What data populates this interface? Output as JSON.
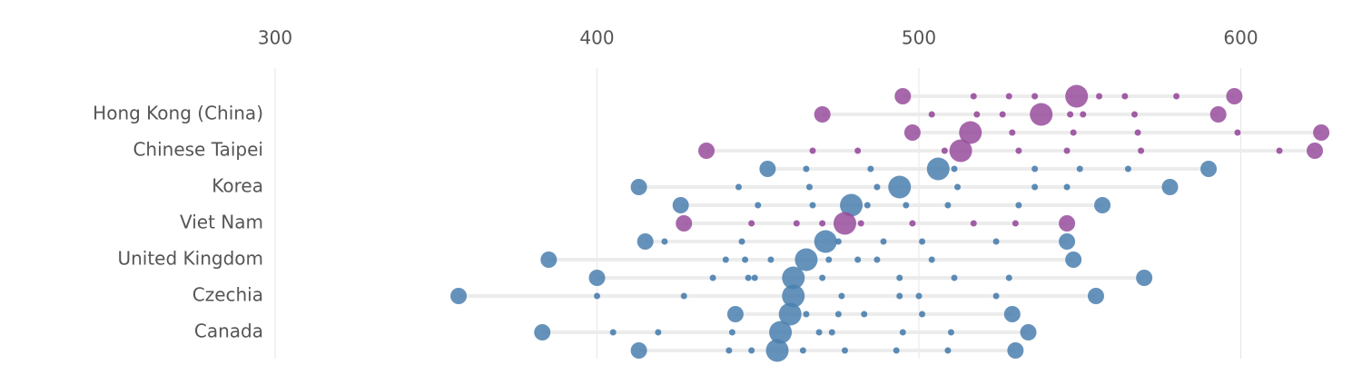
{
  "chart_data": {
    "type": "dotplot",
    "categories": [
      null,
      "Hong Kong (China)",
      null,
      "Chinese Taipei",
      null,
      "Korea",
      null,
      "Viet Nam",
      null,
      "United Kingdom",
      null,
      "Czechia",
      null,
      "Canada",
      null
    ],
    "rows": [
      {
        "color": "#984c9c",
        "low": 495,
        "high": 598,
        "mean": 549,
        "values": [
          517,
          528,
          536,
          556,
          564,
          580
        ]
      },
      {
        "color": "#984c9c",
        "low": 470,
        "high": 593,
        "mean": 538,
        "values": [
          504,
          518,
          526,
          547,
          551,
          567
        ]
      },
      {
        "color": "#984c9c",
        "low": 498,
        "high": 625,
        "mean": 516,
        "values": [
          529,
          548,
          568,
          599
        ]
      },
      {
        "color": "#984c9c",
        "low": 434,
        "high": 623,
        "mean": 513,
        "values": [
          467,
          481,
          508,
          531,
          546,
          569,
          612
        ]
      },
      {
        "color": "#4a7fae",
        "low": 453,
        "high": 590,
        "mean": 506,
        "values": [
          465,
          485,
          511,
          536,
          550,
          565
        ]
      },
      {
        "color": "#4a7fae",
        "low": 413,
        "high": 578,
        "mean": 494,
        "values": [
          444,
          466,
          487,
          512,
          536,
          546
        ]
      },
      {
        "color": "#4a7fae",
        "low": 426,
        "high": 557,
        "mean": 479,
        "values": [
          450,
          467,
          484,
          496,
          509,
          531
        ]
      },
      {
        "color": "#984c9c",
        "low": 427,
        "high": 546,
        "mean": 477,
        "values": [
          448,
          462,
          470,
          482,
          498,
          517,
          530
        ]
      },
      {
        "color": "#4a7fae",
        "low": 415,
        "high": 546,
        "mean": 471,
        "values": [
          421,
          445,
          475,
          489,
          501,
          524
        ]
      },
      {
        "color": "#4a7fae",
        "low": 385,
        "high": 548,
        "mean": 465,
        "values": [
          440,
          446,
          454,
          472,
          481,
          487,
          504
        ]
      },
      {
        "color": "#4a7fae",
        "low": 400,
        "high": 570,
        "mean": 461,
        "values": [
          436,
          447,
          449,
          470,
          494,
          511,
          528
        ]
      },
      {
        "color": "#4a7fae",
        "low": 357,
        "high": 555,
        "mean": 461,
        "values": [
          400,
          427,
          476,
          494,
          500,
          524
        ]
      },
      {
        "color": "#4a7fae",
        "low": 443,
        "high": 529,
        "mean": 460,
        "values": [
          465,
          475,
          483,
          501
        ]
      },
      {
        "color": "#4a7fae",
        "low": 383,
        "high": 534,
        "mean": 457,
        "values": [
          405,
          419,
          442,
          469,
          473,
          495,
          510
        ]
      },
      {
        "color": "#4a7fae",
        "low": 413,
        "high": 530,
        "mean": 456,
        "values": [
          441,
          448,
          464,
          477,
          493,
          509
        ]
      }
    ],
    "xlim": [
      300,
      632
    ],
    "xticks": [
      300,
      400,
      500,
      600
    ],
    "grid": true
  }
}
